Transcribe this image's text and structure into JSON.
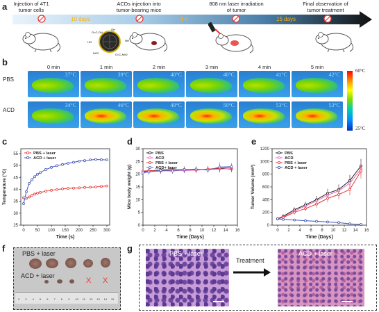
{
  "panel_labels": {
    "a": "a",
    "b": "b",
    "c": "c",
    "d": "d",
    "e": "e",
    "f": "f",
    "g": "g"
  },
  "timeline": {
    "steps": [
      "Injection of 4T1\ntumor cells",
      "ACDs injection into\ntumor-bearing mice",
      "808 nm laser irradiation\nof tumor",
      "Final observation of\ntumor treatment"
    ],
    "intervals": [
      "10 days",
      "6 h",
      "15 days"
    ],
    "particle_labels": [
      "O=C-OH",
      "OH",
      "HO",
      "NH",
      "NO2",
      "O=C-NH2"
    ],
    "colors": {
      "arrow_start": "#e9f3fb",
      "arrow_end": "#1a1a1a",
      "days": "#ffb200"
    }
  },
  "thermal": {
    "times": [
      "0 min",
      "1 min",
      "2 min",
      "3 min",
      "4 min",
      "5 min"
    ],
    "rows": [
      {
        "name": "PBS",
        "temps": [
          "37°C",
          "39°C",
          "40°C",
          "40°C",
          "41°C",
          "42°C"
        ]
      },
      {
        "name": "ACD",
        "temps": [
          "34°C",
          "46°C",
          "49°C",
          "50°C",
          "53°C",
          "53°C"
        ]
      }
    ],
    "scale_max": "60°C",
    "scale_min": "25°C"
  },
  "chart_data": [
    {
      "panel": "c",
      "type": "line",
      "xlabel": "Time (s)",
      "ylabel": "Temperature (°C)",
      "xlim": [
        -10,
        310
      ],
      "ylim": [
        25,
        57
      ],
      "xticks": [
        0,
        50,
        100,
        150,
        200,
        250,
        300
      ],
      "yticks": [
        25,
        30,
        35,
        40,
        45,
        50,
        55
      ],
      "legend": "top-left",
      "series": [
        {
          "name": "PBS + laser",
          "color": "#e53935",
          "marker": "circle",
          "x": [
            0,
            10,
            20,
            30,
            40,
            50,
            60,
            80,
            100,
            120,
            140,
            160,
            180,
            200,
            220,
            240,
            260,
            280,
            300
          ],
          "y": [
            36.5,
            36.2,
            36.8,
            37.5,
            38.0,
            38.4,
            38.7,
            39.2,
            39.6,
            39.9,
            40.2,
            40.4,
            40.5,
            40.6,
            40.8,
            40.9,
            41.0,
            41.2,
            41.4
          ]
        },
        {
          "name": "ACD + laser",
          "color": "#3f51b5",
          "marker": "circle",
          "x": [
            0,
            5,
            10,
            20,
            30,
            40,
            50,
            60,
            80,
            100,
            120,
            140,
            160,
            180,
            200,
            220,
            240,
            260,
            280,
            300
          ],
          "y": [
            34.0,
            36.5,
            39.0,
            42.5,
            44.0,
            45.3,
            46.3,
            47.0,
            48.3,
            49.2,
            49.9,
            50.4,
            50.9,
            51.3,
            51.8,
            52.0,
            52.3,
            52.5,
            52.4,
            52.3
          ]
        }
      ]
    },
    {
      "panel": "d",
      "type": "line",
      "xlabel": "Time (Days)",
      "ylabel": "Mice body weight (g)",
      "xlim": [
        0,
        16
      ],
      "ylim": [
        0,
        30
      ],
      "xticks": [
        0,
        2,
        4,
        6,
        8,
        10,
        12,
        14,
        16
      ],
      "yticks": [
        0,
        5,
        10,
        15,
        20,
        25,
        30
      ],
      "legend": "top-left",
      "series": [
        {
          "name": "PBS",
          "color": "#1a1a1a",
          "x": [
            0,
            1,
            3,
            5,
            7,
            9,
            11,
            13,
            15
          ],
          "y": [
            21.0,
            21.3,
            21.6,
            21.8,
            21.5,
            21.7,
            21.9,
            22.3,
            22.0
          ],
          "err": [
            1.0,
            1.2,
            1.0,
            1.1,
            1.0,
            1.1,
            1.2,
            1.5,
            1.2
          ]
        },
        {
          "name": "ACD",
          "color": "#e36ac0",
          "x": [
            0,
            1,
            3,
            5,
            7,
            9,
            11,
            13,
            15
          ],
          "y": [
            20.8,
            21.0,
            21.2,
            21.5,
            21.4,
            21.6,
            21.8,
            22.0,
            22.2
          ],
          "err": [
            1.0,
            1.1,
            1.0,
            1.2,
            1.0,
            1.1,
            1.0,
            1.3,
            1.2
          ]
        },
        {
          "name": "PBS + laser",
          "color": "#e53935",
          "x": [
            0,
            1,
            3,
            5,
            7,
            9,
            11,
            13,
            15
          ],
          "y": [
            21.2,
            21.4,
            21.3,
            21.7,
            21.9,
            21.6,
            22.0,
            22.4,
            22.6
          ],
          "err": [
            1.1,
            1.0,
            1.2,
            1.0,
            1.1,
            1.2,
            1.1,
            1.4,
            1.3
          ]
        },
        {
          "name": "ACD+ laser",
          "color": "#5c6bc0",
          "x": [
            0,
            1,
            3,
            5,
            7,
            9,
            11,
            13,
            15
          ],
          "y": [
            20.5,
            20.9,
            21.5,
            21.2,
            21.8,
            22.0,
            21.6,
            22.8,
            23.0
          ],
          "err": [
            1.0,
            1.1,
            1.1,
            1.0,
            1.2,
            1.1,
            1.0,
            1.8,
            1.3
          ]
        }
      ]
    },
    {
      "panel": "e",
      "type": "line",
      "xlabel": "Time (Days)",
      "ylabel": "Tumor Volume (mm³)",
      "xlim": [
        -1,
        16
      ],
      "ylim": [
        0,
        1200
      ],
      "xticks": [
        0,
        2,
        4,
        6,
        8,
        10,
        12,
        14,
        16
      ],
      "yticks": [
        0,
        200,
        400,
        600,
        800,
        1000,
        1200
      ],
      "legend": "top-left",
      "series": [
        {
          "name": "PBS",
          "color": "#1a1a1a",
          "x": [
            0,
            1,
            3,
            5,
            7,
            9,
            11,
            13,
            15
          ],
          "y": [
            100,
            140,
            240,
            320,
            400,
            500,
            560,
            700,
            930
          ],
          "err": [
            20,
            30,
            40,
            50,
            60,
            70,
            80,
            90,
            110
          ]
        },
        {
          "name": "ACD",
          "color": "#e36ac0",
          "x": [
            0,
            1,
            3,
            5,
            7,
            9,
            11,
            13,
            15
          ],
          "y": [
            95,
            130,
            220,
            300,
            380,
            470,
            540,
            660,
            880
          ],
          "err": [
            20,
            30,
            40,
            50,
            60,
            70,
            80,
            90,
            110
          ]
        },
        {
          "name": "PBS + laser",
          "color": "#e53935",
          "x": [
            0,
            1,
            3,
            5,
            7,
            9,
            11,
            13,
            15
          ],
          "y": [
            100,
            120,
            200,
            260,
            330,
            420,
            480,
            560,
            850
          ],
          "err": [
            20,
            25,
            35,
            45,
            55,
            65,
            75,
            90,
            120
          ]
        },
        {
          "name": "ACD + laser",
          "color": "#3f51b5",
          "x": [
            0,
            1,
            3,
            5,
            7,
            9,
            11,
            13,
            15
          ],
          "y": [
            100,
            90,
            80,
            70,
            60,
            50,
            40,
            20,
            10
          ],
          "err": [
            10,
            10,
            10,
            10,
            8,
            8,
            6,
            5,
            5
          ]
        }
      ]
    }
  ],
  "tumor_photo": {
    "top_label": "PBS + laser",
    "bottom_label": "ACD + laser",
    "missing_marks": [
      "X",
      "X"
    ],
    "missing_color": "#e53935",
    "ruler_numbers": [
      "2",
      "3",
      "4",
      "5",
      "6",
      "7",
      "8",
      "9",
      "10",
      "11",
      "12",
      "13",
      "14",
      "15"
    ]
  },
  "histology": {
    "left_label": "PBS + laser",
    "arrow_label": "Treatment",
    "right_label": "ACD + laser"
  }
}
